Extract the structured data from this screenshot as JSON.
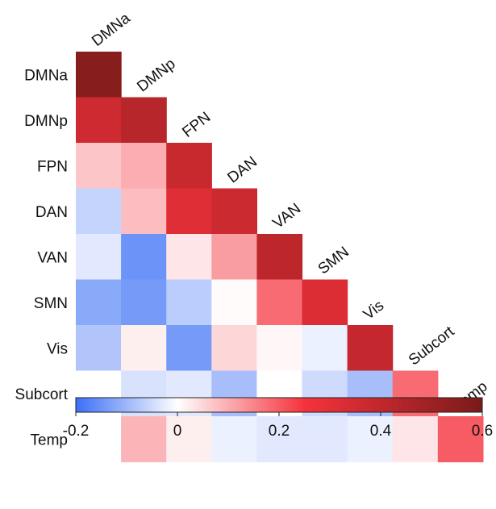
{
  "chart_data": {
    "type": "heatmap",
    "layout": "lower-triangular correlation matrix with diagonal labels",
    "rows": [
      "DMNa",
      "DMNp",
      "FPN",
      "DAN",
      "VAN",
      "SMN",
      "Vis",
      "Subcort",
      "Temp"
    ],
    "columns": [
      "DMNa",
      "DMNp",
      "FPN",
      "DAN",
      "VAN",
      "SMN",
      "Vis",
      "Subcort",
      "Temp"
    ],
    "values": [
      [
        0.56
      ],
      [
        0.36,
        0.43
      ],
      [
        0.07,
        0.1,
        0.38
      ],
      [
        -0.06,
        0.08,
        0.31,
        0.37
      ],
      [
        -0.03,
        -0.15,
        0.03,
        0.12,
        0.41
      ],
      [
        -0.12,
        -0.14,
        -0.07,
        0.005,
        0.18,
        0.32
      ],
      [
        -0.08,
        0.02,
        -0.14,
        0.05,
        0.01,
        -0.02,
        0.39
      ],
      [
        0.0,
        -0.04,
        -0.03,
        -0.09,
        0.0,
        -0.05,
        -0.09,
        0.18
      ],
      [
        0.0,
        0.09,
        0.02,
        -0.02,
        -0.03,
        -0.03,
        -0.02,
        0.03,
        0.2
      ]
    ],
    "colorbar": {
      "min": -0.2,
      "max": 0.6,
      "ticks": [
        "-0.2",
        "0",
        "0.2",
        "0.4",
        "0.6"
      ],
      "tick_values": [
        -0.2,
        0,
        0.2,
        0.4,
        0.6
      ],
      "colormap": [
        "#3b6ff5",
        "#ffffff",
        "#f5323c",
        "#7a1a1a"
      ],
      "colormap_stops": [
        -0.2,
        0.0,
        0.25,
        0.6
      ]
    }
  }
}
